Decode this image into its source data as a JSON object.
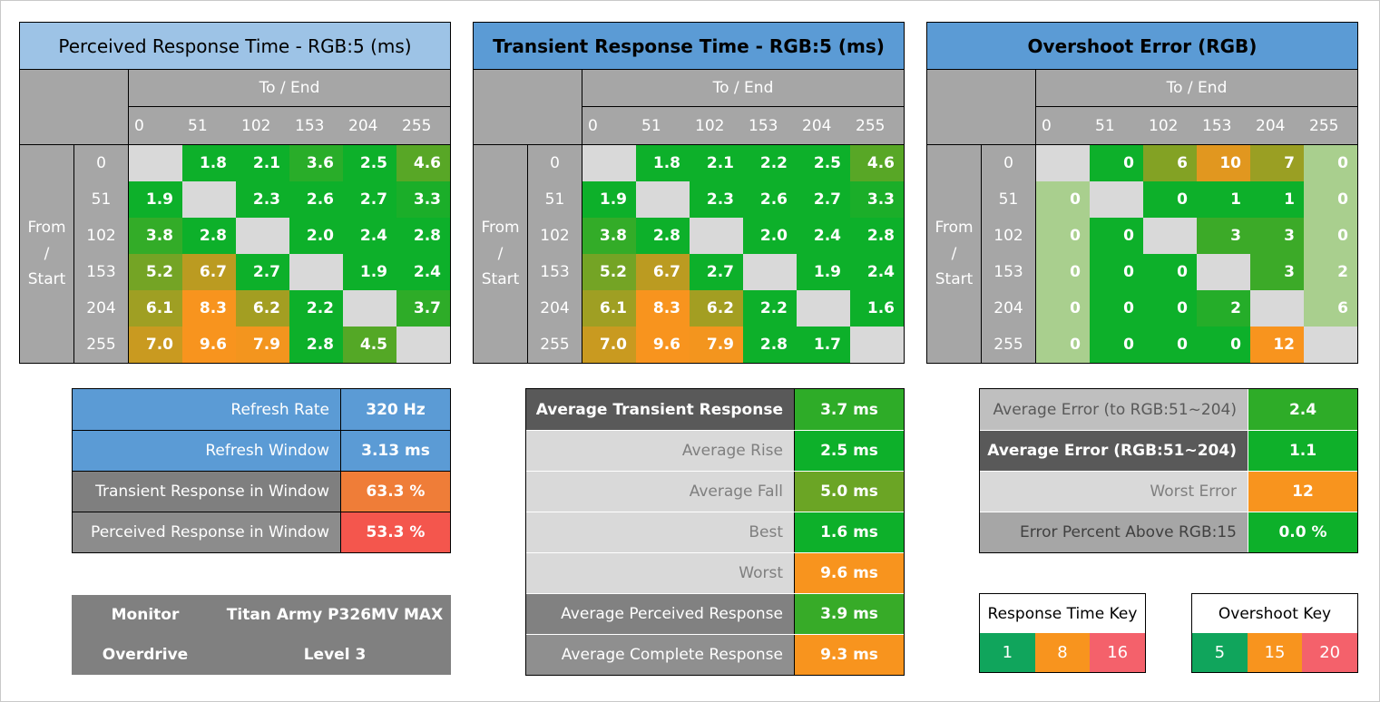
{
  "palette": {
    "green": "#0db02a",
    "orange": "#f8941e",
    "red": "#f4564d",
    "pale_green": "#a9cf8e",
    "diagonal_gray": "#d9d9d9",
    "header_gray": "#a6a6a6",
    "title_blue_light": "#9dc3e6",
    "title_blue": "#5b9bd5",
    "key_green": "#10a55c",
    "key_red": "#f4616b"
  },
  "scales": {
    "response": [
      [
        3,
        "#0db02a"
      ],
      [
        8,
        "#f8941e"
      ],
      [
        10,
        "#f8941e"
      ],
      [
        16,
        "#f4564d"
      ]
    ],
    "overshoot": [
      [
        1,
        "#0db02a"
      ],
      [
        11,
        "#f8941e"
      ],
      [
        13,
        "#f8941e"
      ],
      [
        20,
        "#f4564d"
      ]
    ]
  },
  "chart_data": {
    "type": "heatmap",
    "axis": {
      "col_group": "To / End",
      "row_group_lines": [
        "From",
        "/",
        "Start"
      ],
      "levels": [
        "0",
        "51",
        "102",
        "153",
        "204",
        "255"
      ]
    },
    "tables": [
      {
        "title": "Perceived Response Time - RGB:5 (ms)",
        "title_bg": "#9dc3e6",
        "title_bold": false,
        "scale": "response",
        "pale_edge_cols": false,
        "rows": [
          [
            null,
            "1.8",
            "2.1",
            "3.6",
            "2.5",
            "4.6"
          ],
          [
            "1.9",
            null,
            "2.3",
            "2.6",
            "2.7",
            "3.3"
          ],
          [
            "3.8",
            "2.8",
            null,
            "2.0",
            "2.4",
            "2.8"
          ],
          [
            "5.2",
            "6.7",
            "2.7",
            null,
            "1.9",
            "2.4"
          ],
          [
            "6.1",
            "8.3",
            "6.2",
            "2.2",
            null,
            "3.7"
          ],
          [
            "7.0",
            "9.6",
            "7.9",
            "2.8",
            "4.5",
            null
          ]
        ]
      },
      {
        "title": "Transient Response Time - RGB:5 (ms)",
        "title_bg": "#5b9bd5",
        "title_bold": true,
        "scale": "response",
        "pale_edge_cols": false,
        "rows": [
          [
            null,
            "1.8",
            "2.1",
            "2.2",
            "2.5",
            "4.6"
          ],
          [
            "1.9",
            null,
            "2.3",
            "2.6",
            "2.7",
            "3.3"
          ],
          [
            "3.8",
            "2.8",
            null,
            "2.0",
            "2.4",
            "2.8"
          ],
          [
            "5.2",
            "6.7",
            "2.7",
            null,
            "1.9",
            "2.4"
          ],
          [
            "6.1",
            "8.3",
            "6.2",
            "2.2",
            null,
            "1.6"
          ],
          [
            "7.0",
            "9.6",
            "7.9",
            "2.8",
            "1.7",
            null
          ]
        ]
      },
      {
        "title": "Overshoot Error (RGB)",
        "title_bg": "#5b9bd5",
        "title_bold": true,
        "scale": "overshoot",
        "pale_edge_cols": true,
        "rows": [
          [
            null,
            "0",
            "6",
            "10",
            "7",
            "0"
          ],
          [
            "0",
            null,
            "0",
            "1",
            "1",
            "0"
          ],
          [
            "0",
            "0",
            null,
            "3",
            "3",
            "0"
          ],
          [
            "0",
            "0",
            "0",
            null,
            "3",
            "2"
          ],
          [
            "0",
            "0",
            "0",
            "2",
            null,
            "6"
          ],
          [
            "0",
            "0",
            "0",
            "0",
            "12",
            null
          ]
        ]
      }
    ]
  },
  "refresh_summary": {
    "sep": "#000000",
    "vsep": "#000000",
    "rows": [
      {
        "label": "Refresh Rate",
        "value": "320 Hz",
        "label_bg": "#5b9bd5",
        "label_color": "#ffffff",
        "label_bold": false,
        "value_bg": "#5b9bd5"
      },
      {
        "label": "Refresh Window",
        "value": "3.13 ms",
        "label_bg": "#5b9bd5",
        "label_color": "#ffffff",
        "label_bold": false,
        "value_bg": "#5b9bd5"
      },
      {
        "label": "Transient Response in Window",
        "value": "63.3 %",
        "label_bg": "#7f7f7f",
        "label_color": "#ffffff",
        "label_bold": false,
        "value_bg": "#ef7d38"
      },
      {
        "label": "Perceived Response in Window",
        "value": "53.3 %",
        "label_bg": "#8c8c8c",
        "label_color": "#ffffff",
        "label_bold": false,
        "value_bg": "#f4564d"
      }
    ]
  },
  "monitor": {
    "bg": "#808080",
    "rows": [
      {
        "label": "Monitor",
        "value": "Titan Army P326MV MAX"
      },
      {
        "label": "Overdrive",
        "value": "Level 3"
      }
    ]
  },
  "response_summary": {
    "sep": "#ffffff",
    "vsep": "#000000",
    "rows": [
      {
        "label": "Average Transient Response",
        "value": "3.7 ms",
        "label_bg": "#595959",
        "label_color": "#ffffff",
        "label_bold": true,
        "value_scale": "response"
      },
      {
        "label": "Average Rise",
        "value": "2.5 ms",
        "label_bg": "#d9d9d9",
        "label_color": "#7f7f7f",
        "label_bold": false,
        "value_scale": "response"
      },
      {
        "label": "Average Fall",
        "value": "5.0 ms",
        "label_bg": "#d9d9d9",
        "label_color": "#7f7f7f",
        "label_bold": false,
        "value_scale": "response"
      },
      {
        "label": "Best",
        "value": "1.6 ms",
        "label_bg": "#d9d9d9",
        "label_color": "#7f7f7f",
        "label_bold": false,
        "value_scale": "response"
      },
      {
        "label": "Worst",
        "value": "9.6 ms",
        "label_bg": "#d9d9d9",
        "label_color": "#7f7f7f",
        "label_bold": false,
        "value_scale": "response"
      },
      {
        "label": "Average Perceived Response",
        "value": "3.9 ms",
        "label_bg": "#818181",
        "label_color": "#ffffff",
        "label_bold": false,
        "value_scale": "response"
      },
      {
        "label": "Average Complete Response",
        "value": "9.3 ms",
        "label_bg": "#8f8f8f",
        "label_color": "#ffffff",
        "label_bold": false,
        "value_scale": "response"
      }
    ]
  },
  "error_summary": {
    "sep": "#ffffff",
    "vsep": "#ffffff",
    "rows": [
      {
        "label": "Average Error (to RGB:51~204)",
        "value": "2.4",
        "label_bg": "#bfbfbf",
        "label_color": "#595959",
        "label_bold": false,
        "value_scale": "overshoot"
      },
      {
        "label": "Average Error (RGB:51~204)",
        "value": "1.1",
        "label_bg": "#595959",
        "label_color": "#ffffff",
        "label_bold": true,
        "value_scale": "overshoot"
      },
      {
        "label": "Worst Error",
        "value": "12",
        "label_bg": "#d9d9d9",
        "label_color": "#7f7f7f",
        "label_bold": false,
        "value_scale": "overshoot"
      },
      {
        "label": "Error Percent Above RGB:15",
        "value": "0.0 %",
        "label_bg": "#a6a6a6",
        "label_color": "#404040",
        "label_bold": false,
        "value_scale": "overshoot"
      }
    ]
  },
  "keys": [
    {
      "title": "Response Time Key",
      "chips": [
        {
          "label": "1",
          "color": "#10a55c"
        },
        {
          "label": "8",
          "color": "#f8941e"
        },
        {
          "label": "16",
          "color": "#f4616b"
        }
      ]
    },
    {
      "title": "Overshoot Key",
      "chips": [
        {
          "label": "5",
          "color": "#10a55c"
        },
        {
          "label": "15",
          "color": "#f8941e"
        },
        {
          "label": "20",
          "color": "#f4616b"
        }
      ]
    }
  ]
}
